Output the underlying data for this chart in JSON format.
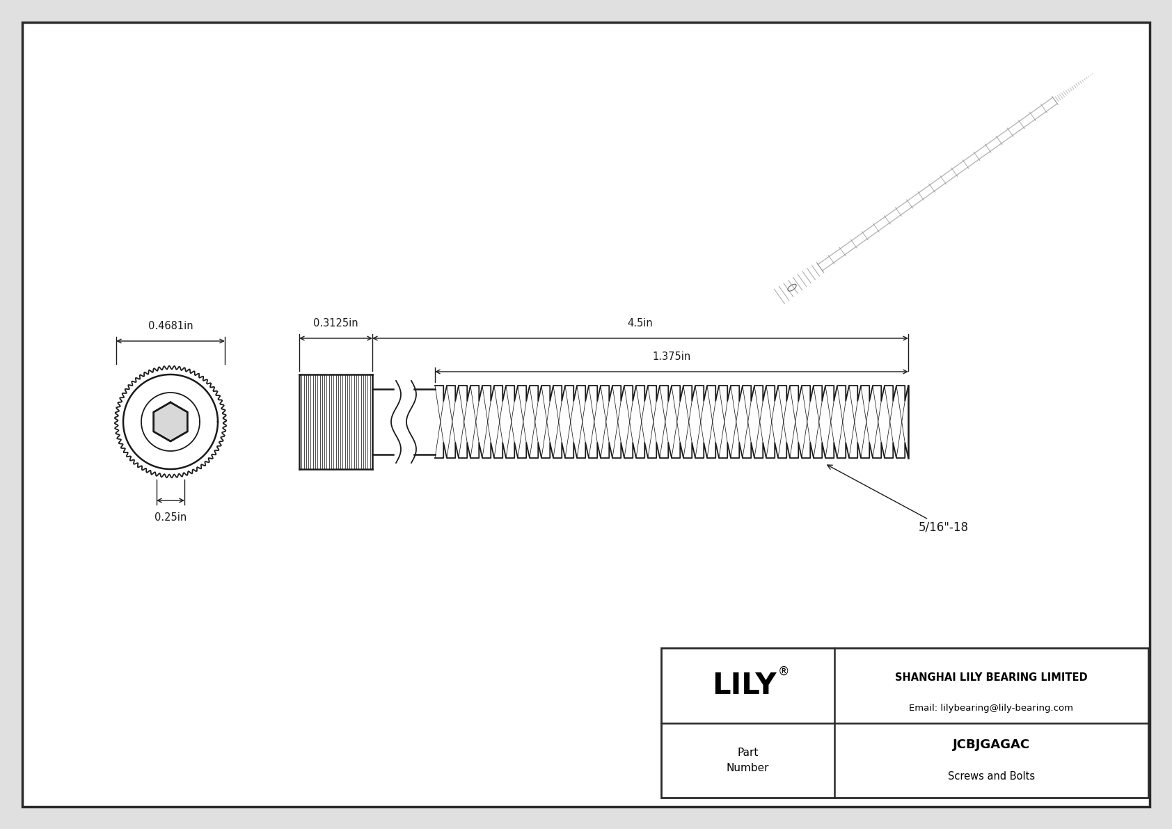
{
  "bg_color": "#e0e0e0",
  "drawing_bg": "#f5f5f5",
  "border_color": "#2a2a2a",
  "line_color": "#1a1a1a",
  "dim_color": "#1a1a1a",
  "title": "JCBJGAGAC",
  "subtitle": "Screws and Bolts",
  "company": "SHANGHAI LILY BEARING LIMITED",
  "email": "Email: lilybearing@lily-bearing.com",
  "part_label": "Part\nNumber",
  "logo": "LILY",
  "dim_head_diameter": "0.4681in",
  "dim_socket_diameter": "0.25in",
  "dim_head_height": "0.3125in",
  "dim_total_length": "4.5in",
  "dim_thread_length": "1.375in",
  "dim_thread_spec": "5/16\"-18"
}
